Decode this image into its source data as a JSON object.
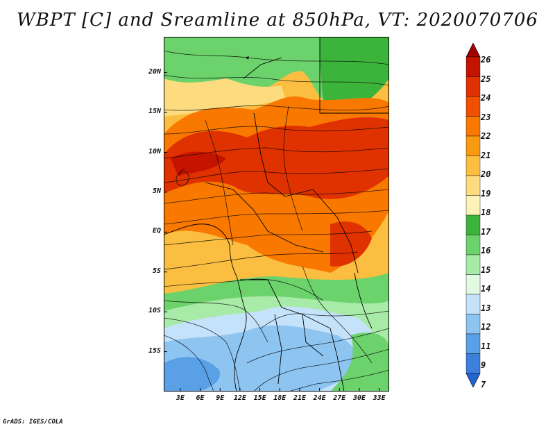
{
  "title": "WBPT [C] and Sreamline at 850hPa, VT: 2020070706",
  "credit": "GrADS: IGES/COLA",
  "map": {
    "lat_ticks": [
      {
        "label": "20N",
        "value": 20
      },
      {
        "label": "15N",
        "value": 15
      },
      {
        "label": "10N",
        "value": 10
      },
      {
        "label": "5N",
        "value": 5
      },
      {
        "label": "EQ",
        "value": 0
      },
      {
        "label": "5S",
        "value": -5
      },
      {
        "label": "10S",
        "value": -10
      },
      {
        "label": "15S",
        "value": -15
      }
    ],
    "lon_ticks": [
      {
        "label": "3E",
        "value": 3
      },
      {
        "label": "6E",
        "value": 6
      },
      {
        "label": "9E",
        "value": 9
      },
      {
        "label": "12E",
        "value": 12
      },
      {
        "label": "15E",
        "value": 15
      },
      {
        "label": "18E",
        "value": 18
      },
      {
        "label": "21E",
        "value": 21
      },
      {
        "label": "24E",
        "value": 24
      },
      {
        "label": "27E",
        "value": 27
      },
      {
        "label": "30E",
        "value": 30
      },
      {
        "label": "33E",
        "value": 33
      }
    ],
    "lon_range": [
      0.5,
      34.5
    ],
    "lat_range": [
      -20,
      24.5
    ]
  },
  "colorbar": {
    "labels": [
      "26",
      "25",
      "24",
      "23",
      "22",
      "21",
      "20",
      "19",
      "18",
      "17",
      "16",
      "15",
      "14",
      "13",
      "12",
      "11",
      "9",
      "7"
    ],
    "colors": [
      "#a00000",
      "#c41400",
      "#e03200",
      "#f05000",
      "#f87800",
      "#fa9a10",
      "#fbbe40",
      "#fddc80",
      "#fff2b8",
      "#3cb43c",
      "#6cd26c",
      "#a8eaa8",
      "#e2fae2",
      "#c4e2fa",
      "#8ec4f0",
      "#5aa0e6",
      "#3c80dc",
      "#2264d2"
    ]
  }
}
